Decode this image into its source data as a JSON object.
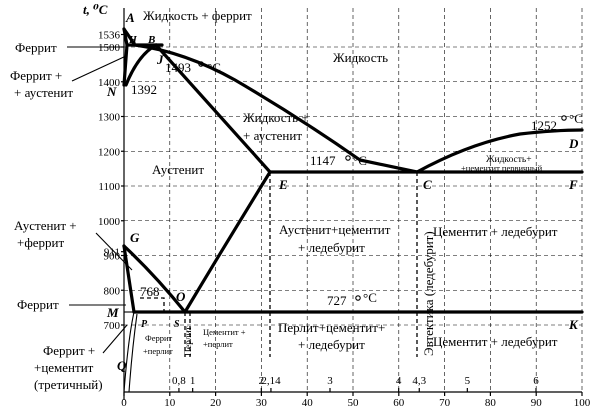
{
  "axis": {
    "t_label": "t, ⁰C",
    "y_ticks": [
      {
        "v": 1536,
        "label": "1536"
      },
      {
        "v": 1500,
        "label": "1500"
      },
      {
        "v": 1400,
        "label": "1400"
      },
      {
        "v": 1300,
        "label": "1300"
      },
      {
        "v": 1200,
        "label": "1200"
      },
      {
        "v": 1100,
        "label": "1100"
      },
      {
        "v": 1000,
        "label": "1000"
      },
      {
        "v": 911,
        "label": "911"
      },
      {
        "v": 900,
        "label": "900"
      },
      {
        "v": 800,
        "label": "800"
      },
      {
        "v": 700,
        "label": "700"
      }
    ],
    "y_grid": [
      1500,
      1400,
      1300,
      1200,
      1100,
      1000,
      900,
      800,
      700
    ],
    "x_grid": [
      10,
      20,
      30,
      40,
      50,
      60,
      70,
      80,
      90,
      100
    ],
    "x_ticks_bottom": [
      "0",
      "10",
      "20",
      "30",
      "40",
      "50",
      "60",
      "70",
      "80",
      "90",
      "100"
    ],
    "x_ticks_carbon": [
      {
        "pct": 0.8,
        "label": "0,8"
      },
      {
        "pct": 1,
        "label": "1"
      },
      {
        "pct": 2,
        "label": "2"
      },
      {
        "pct": 2.14,
        "label": "2,14"
      },
      {
        "pct": 3,
        "label": "3"
      },
      {
        "pct": 4,
        "label": "4"
      },
      {
        "pct": 4.3,
        "label": "4,3"
      },
      {
        "pct": 5,
        "label": "5"
      },
      {
        "pct": 6,
        "label": "6"
      }
    ]
  },
  "points": {
    "A": "A",
    "H": "H",
    "J": "J",
    "B": "B",
    "N": "N",
    "D": "D",
    "E": "E",
    "C": "C",
    "F": "F",
    "G": "G",
    "O": "O",
    "M": "M",
    "P": "P",
    "S": "S",
    "K": "K",
    "Q": "Q"
  },
  "temps": {
    "t1493": "1493",
    "t1392": "1392",
    "t1252": "1252",
    "t1147": "1147",
    "t768": "768",
    "t727": "727",
    "deg": "°C"
  },
  "regions": {
    "liquid_ferrite": "Жидкость + феррит",
    "liquid": "Жидкость",
    "liquid_austenite_1": "Жидкость +",
    "liquid_austenite_2": "+ аустенит",
    "liquid_cementite_1": "Жидкость+",
    "liquid_cementite_2": "+цементит первичный",
    "austenite": "Аустенит",
    "aus_cem_led_1": "Аустенит+цементит",
    "aus_cem_led_2": "+ ледебурит",
    "cem_led_upper": "Цементит + ледебурит",
    "cem_led_lower": "Цементит + ледебурит",
    "eutectic": "Эвтектика (ледебурит)",
    "perl_cem_led_1": "Перлит+цементит+",
    "perl_cem_led_2": "+ ледебурит",
    "cem_perl_1": "Цементит +",
    "cem_perl_2": "+перлит",
    "ferr_perl_1": "Феррит",
    "ferr_perl_2": "+перлит",
    "perlite": "Перлит"
  },
  "left_labels": {
    "ferrite_top": "Феррит",
    "ferrite_aus_1": "Феррит +",
    "ferrite_aus_2": "+ аустенит",
    "aus_ferr_1": "Аустенит +",
    "aus_ferr_2": "+феррит",
    "ferrite_mid": "Феррит",
    "ferr_cem_1": "Феррит +",
    "ferr_cem_2": "+цементит",
    "ferr_cem_3": "(третичный)"
  }
}
